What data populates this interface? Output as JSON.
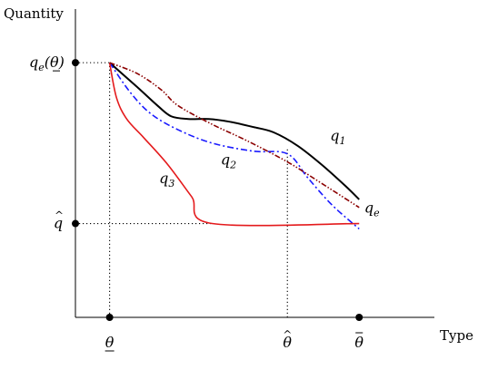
{
  "chart_data": {
    "type": "line",
    "axis_labels": {
      "y": "Quantity",
      "x": "Type"
    },
    "x_ticks": [
      {
        "key": "theta_low",
        "base": "θ",
        "accent": "underline",
        "x": 0.1
      },
      {
        "key": "theta_hat",
        "base": "θ",
        "accent": "hat",
        "x": 0.62
      },
      {
        "key": "theta_bar",
        "base": "θ",
        "accent": "bar",
        "x": 0.83
      }
    ],
    "y_ticks": [
      {
        "key": "qe_theta",
        "text": "q",
        "sub": "e",
        "paren": "(θ)",
        "y": 0.95
      },
      {
        "key": "q_hat",
        "base": "q",
        "accent": "hat",
        "y": 0.35
      }
    ],
    "xlim": [
      0,
      1.05
    ],
    "ylim": [
      0,
      1.15
    ],
    "reference_lines": [
      {
        "orientation": "vertical",
        "x": 0.1,
        "from": 0,
        "to": 0.95
      },
      {
        "orientation": "vertical",
        "x": 0.62,
        "from": 0,
        "to": 0.63
      },
      {
        "orientation": "horizontal",
        "y": 0.95,
        "from": 0,
        "to": 0.1
      },
      {
        "orientation": "horizontal",
        "y": 0.35,
        "from": 0,
        "to": 0.4
      }
    ],
    "series": [
      {
        "name": "q1",
        "label_base": "q",
        "label_sub": "1",
        "color": "#000000",
        "dash": "solid",
        "x": [
          0.1,
          0.18,
          0.24,
          0.28,
          0.33,
          0.39,
          0.45,
          0.52,
          0.58,
          0.65,
          0.72,
          0.79,
          0.83
        ],
        "y": [
          0.95,
          0.86,
          0.79,
          0.75,
          0.74,
          0.74,
          0.73,
          0.71,
          0.69,
          0.64,
          0.57,
          0.49,
          0.44
        ],
        "label_pos": {
          "x": 0.745,
          "y": 0.66
        }
      },
      {
        "name": "q2",
        "label_base": "q",
        "label_sub": "2",
        "color": "#1a1aff",
        "dash": "dashdot",
        "x": [
          0.1,
          0.16,
          0.22,
          0.3,
          0.4,
          0.52,
          0.62,
          0.68,
          0.75,
          0.83
        ],
        "y": [
          0.95,
          0.84,
          0.76,
          0.7,
          0.65,
          0.62,
          0.61,
          0.52,
          0.42,
          0.33
        ],
        "label_pos": {
          "x": 0.425,
          "y": 0.57
        }
      },
      {
        "name": "q3",
        "label_base": "q",
        "label_sub": "3",
        "color": "#e41a1c",
        "dash": "solid",
        "x": [
          0.1,
          0.12,
          0.15,
          0.2,
          0.27,
          0.34,
          0.4,
          0.83
        ],
        "y": [
          0.95,
          0.82,
          0.74,
          0.67,
          0.57,
          0.45,
          0.35,
          0.35
        ],
        "label_pos": {
          "x": 0.245,
          "y": 0.5
        }
      },
      {
        "name": "qe",
        "label_base": "q",
        "label_sub": "e",
        "color": "#8b0000",
        "dash": "dashdotdot",
        "x": [
          0.1,
          0.18,
          0.25,
          0.3,
          0.4,
          0.5,
          0.62,
          0.72,
          0.83
        ],
        "y": [
          0.95,
          0.91,
          0.85,
          0.79,
          0.72,
          0.66,
          0.58,
          0.5,
          0.41
        ],
        "label_pos": {
          "x": 0.845,
          "y": 0.39
        }
      }
    ],
    "markers": [
      {
        "x": 0.1,
        "y": 0
      },
      {
        "x": 0.83,
        "y": 0
      },
      {
        "x": 0,
        "y": 0.95
      },
      {
        "x": 0,
        "y": 0.35
      }
    ]
  }
}
